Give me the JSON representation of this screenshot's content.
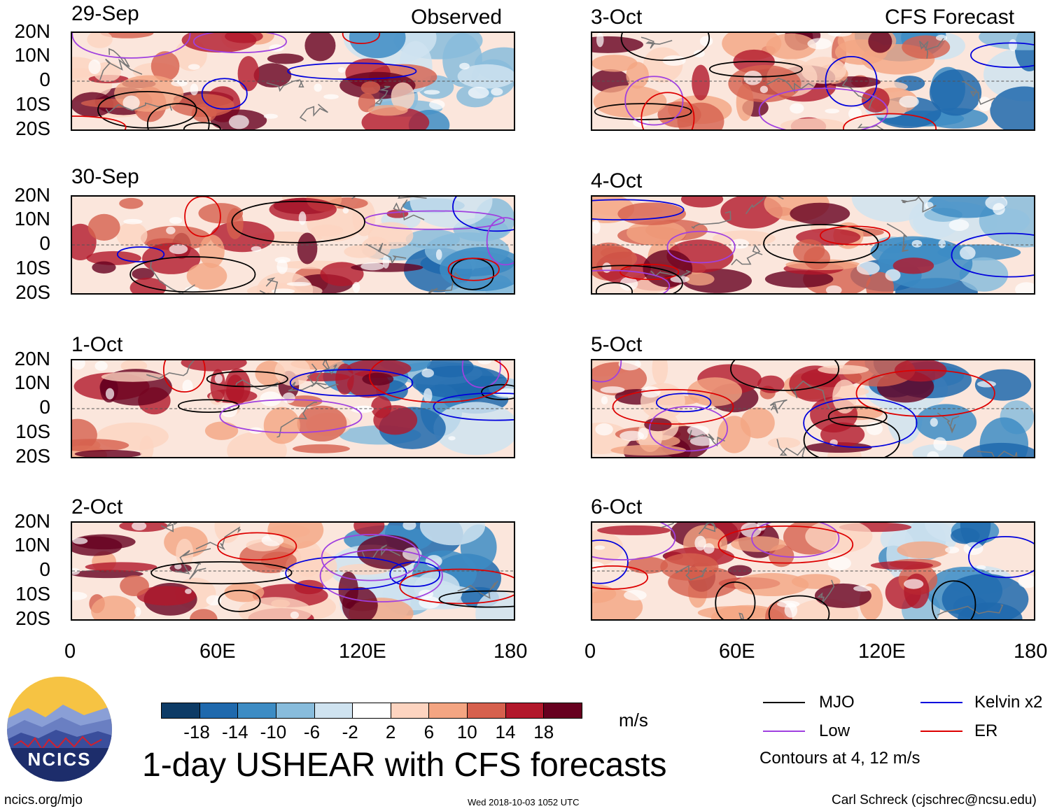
{
  "header": {
    "observed_label": "Observed",
    "forecast_label": "CFS Forecast"
  },
  "observed_panels": [
    {
      "date": "29-Sep"
    },
    {
      "date": "30-Sep"
    },
    {
      "date": "1-Oct"
    },
    {
      "date": "2-Oct"
    }
  ],
  "forecast_panels": [
    {
      "date": "3-Oct"
    },
    {
      "date": "4-Oct"
    },
    {
      "date": "5-Oct"
    },
    {
      "date": "6-Oct"
    }
  ],
  "lat_labels": [
    "20N",
    "10N",
    "0",
    "10S",
    "20S"
  ],
  "lon_labels": [
    "0",
    "60E",
    "120E",
    "180"
  ],
  "colorbar": {
    "colors": [
      "#0d3b66",
      "#1f69ad",
      "#3d8cc4",
      "#88bcdc",
      "#cfe3f0",
      "#ffffff",
      "#fdd4c0",
      "#f4a582",
      "#d6604d",
      "#b2182b",
      "#67001f"
    ],
    "ticks": [
      "-18",
      "-14",
      "-10",
      "-6",
      "-2",
      "2",
      "6",
      "10",
      "14",
      "18"
    ],
    "unit": "m/s"
  },
  "title": "1-day USHEAR with CFS forecasts",
  "legend": {
    "items": [
      {
        "label": "MJO",
        "color": "#000000"
      },
      {
        "label": "Kelvin x2",
        "color": "#0000dd"
      },
      {
        "label": "Low",
        "color": "#a040e0"
      },
      {
        "label": "ER",
        "color": "#dd0000"
      }
    ],
    "note": "Contours at 4, 12 m/s"
  },
  "logo_text": "NCICS",
  "footer": {
    "site": "ncics.org/mjo",
    "timestamp": "Wed 2018-10-03 1052 UTC",
    "author": "Carl Schreck (cjschrec@ncsu.edu)"
  }
}
